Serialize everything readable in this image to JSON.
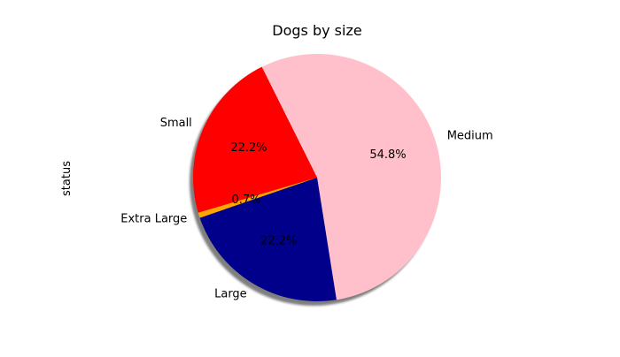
{
  "chart_data": {
    "type": "pie",
    "title": "Dogs by size",
    "ylabel": "status",
    "xlabel": "",
    "categories": [
      "Medium",
      "Small",
      "Extra Large",
      "Large"
    ],
    "values": [
      54.8,
      22.2,
      0.7,
      22.2
    ],
    "percent_labels": [
      "54.8%",
      "22.2%",
      "0.7%",
      "22.2%"
    ],
    "colors": [
      "#ffc0cb",
      "#ff0000",
      "#ffa500",
      "#00008b"
    ],
    "start_angle_deg": -81,
    "direction": "counterclockwise",
    "shadow": true,
    "legend": "none"
  }
}
